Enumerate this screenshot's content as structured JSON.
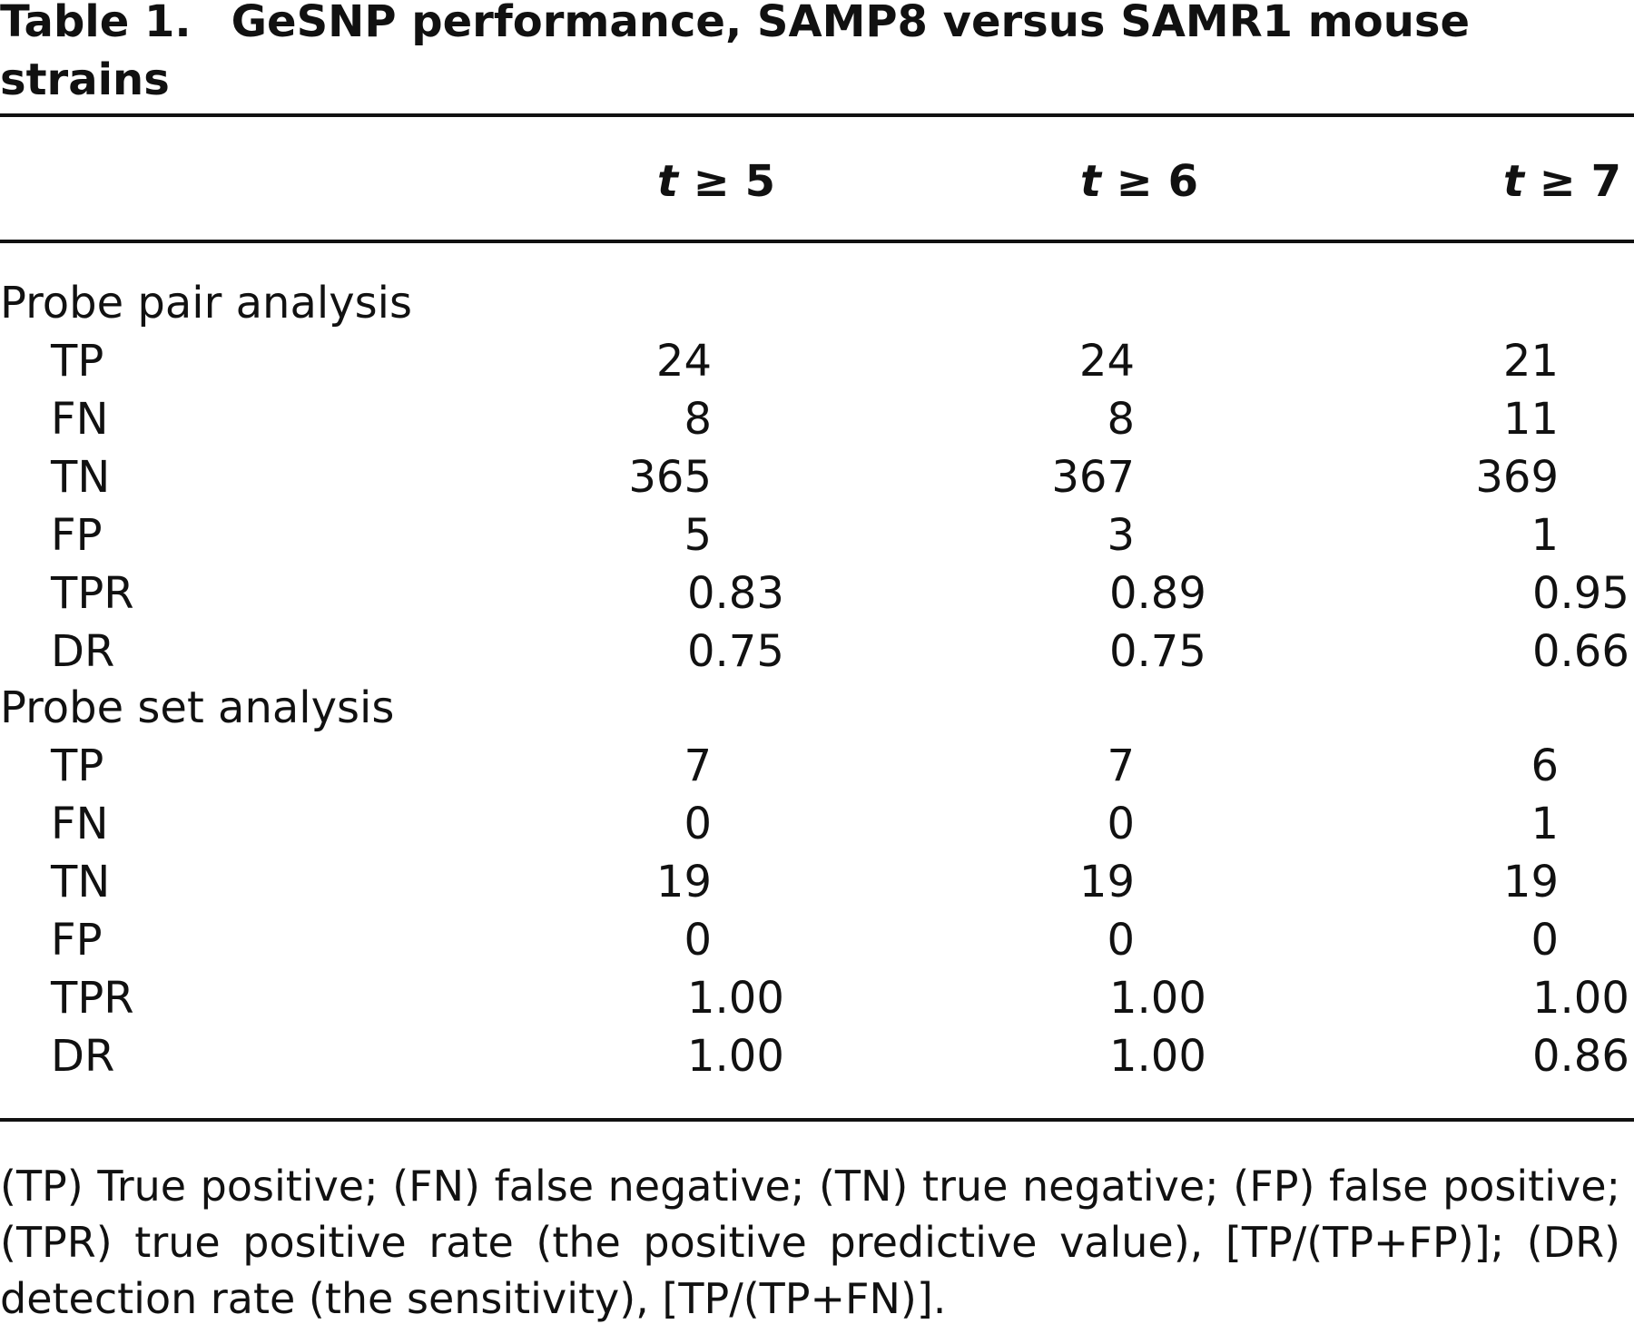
{
  "caption": {
    "label": "Table 1.",
    "title": "GeSNP performance, SAMP8 versus SAMR1 mouse strains"
  },
  "columns": [
    {
      "var": "t",
      "op": " ≥ ",
      "val": "5"
    },
    {
      "var": "t",
      "op": " ≥ ",
      "val": "6"
    },
    {
      "var": "t",
      "op": " ≥ ",
      "val": "7"
    }
  ],
  "sections": [
    {
      "title": "Probe pair analysis",
      "rows": [
        {
          "label": "TP",
          "values": [
            "24",
            "24",
            "21"
          ]
        },
        {
          "label": "FN",
          "values": [
            "8",
            "8",
            "11"
          ]
        },
        {
          "label": "TN",
          "values": [
            "365",
            "367",
            "369"
          ]
        },
        {
          "label": "FP",
          "values": [
            "5",
            "3",
            "1"
          ]
        },
        {
          "label": "TPR",
          "values": [
            "0.83",
            "0.89",
            "0.95"
          ]
        },
        {
          "label": "DR",
          "values": [
            "0.75",
            "0.75",
            "0.66"
          ]
        }
      ]
    },
    {
      "title": "Probe set analysis",
      "rows": [
        {
          "label": "TP",
          "values": [
            "7",
            "7",
            "6"
          ]
        },
        {
          "label": "FN",
          "values": [
            "0",
            "0",
            "1"
          ]
        },
        {
          "label": "TN",
          "values": [
            "19",
            "19",
            "19"
          ]
        },
        {
          "label": "FP",
          "values": [
            "0",
            "0",
            "0"
          ]
        },
        {
          "label": "TPR",
          "values": [
            "1.00",
            "1.00",
            "1.00"
          ]
        },
        {
          "label": "DR",
          "values": [
            "1.00",
            "1.00",
            "0.86"
          ]
        }
      ]
    }
  ],
  "footnote": "(TP) True positive; (FN) false negative; (TN) true negative; (FP) false positive; (TPR) true positive rate (the positive predictive value), [TP/(TP+FP)]; (DR) detection rate (the sensitivity), [TP/(TP+FN)]."
}
